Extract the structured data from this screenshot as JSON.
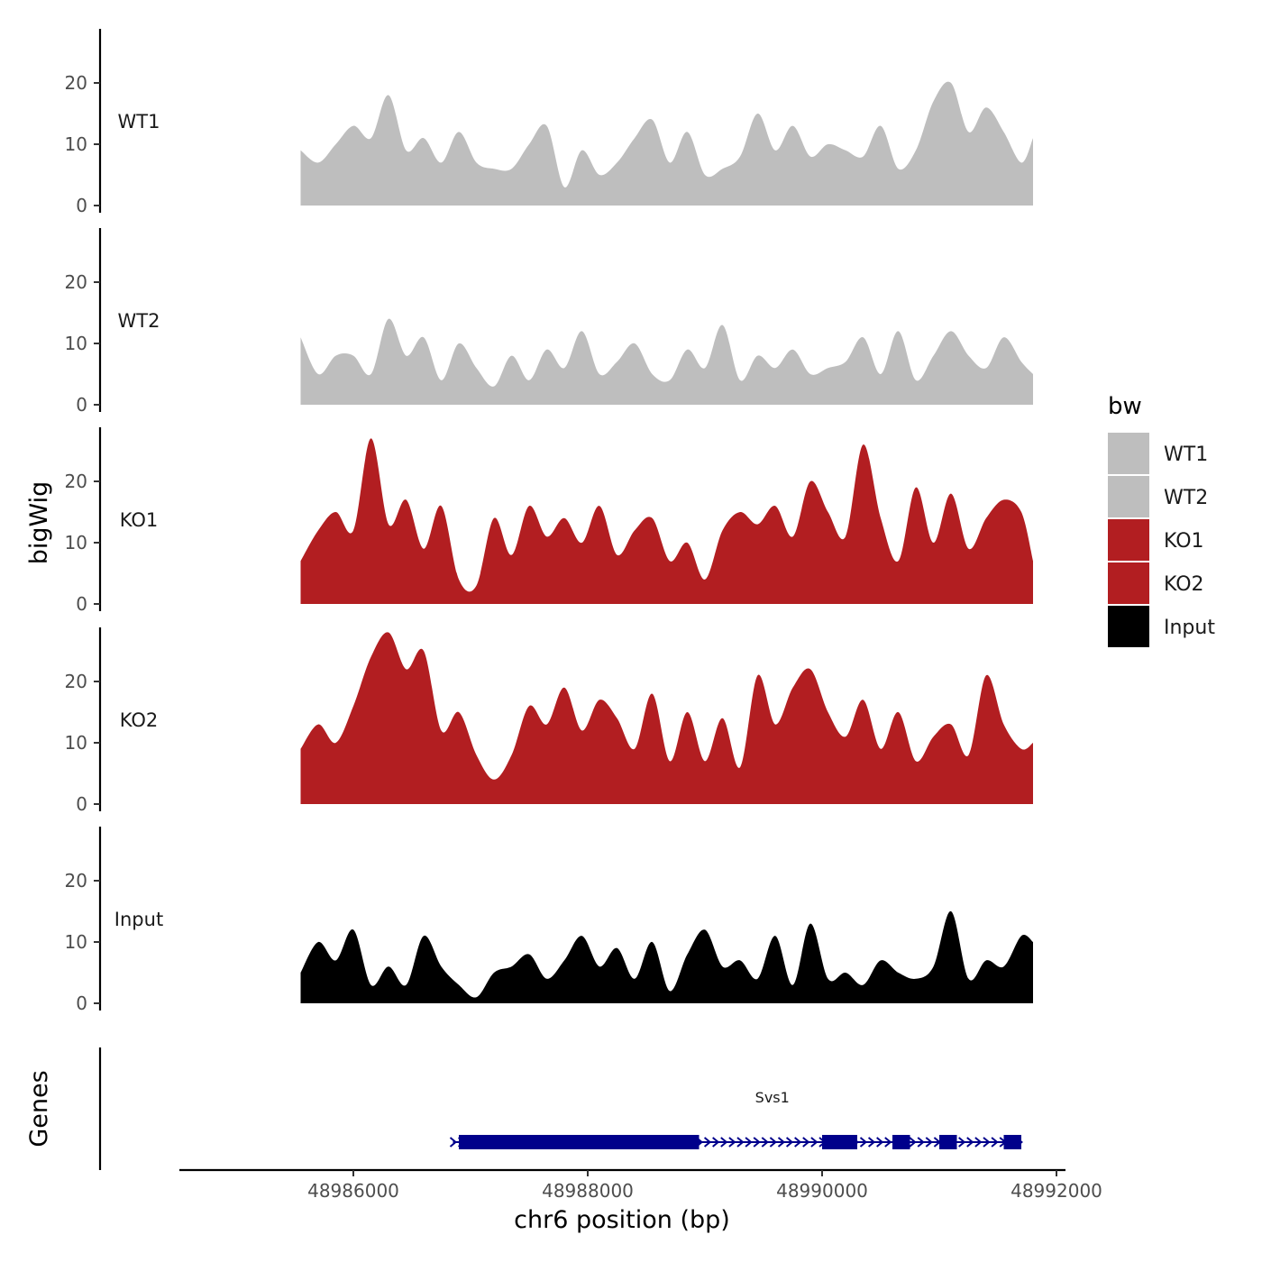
{
  "chart_data": {
    "type": "area",
    "title": "",
    "xlabel": "chr6 position (bp)",
    "ylabel": "bigWig",
    "genes_label": "Genes",
    "xlim": [
      48984500,
      48992000
    ],
    "x_ticks": [
      48986000,
      48988000,
      48990000,
      48992000
    ],
    "x_tick_labels": [
      "48986000",
      "48988000",
      "48990000",
      "48992000"
    ],
    "ylim": [
      0,
      29
    ],
    "y_ticks": [
      0,
      10,
      20
    ],
    "y_tick_labels": [
      "0",
      "10",
      "20"
    ],
    "legend": {
      "title": "bw",
      "placement": "right",
      "entries": [
        {
          "label": "WT1",
          "color": "#bebebe"
        },
        {
          "label": "WT2",
          "color": "#bebebe"
        },
        {
          "label": "KO1",
          "color": "#b21e21"
        },
        {
          "label": "KO2",
          "color": "#b21e21"
        },
        {
          "label": "Input",
          "color": "#000000"
        }
      ]
    },
    "x": [
      48985550,
      48985700,
      48985850,
      48986000,
      48986150,
      48986300,
      48986450,
      48986600,
      48986750,
      48986900,
      48987050,
      48987200,
      48987350,
      48987500,
      48987650,
      48987800,
      48987950,
      48988100,
      48988250,
      48988400,
      48988550,
      48988700,
      48988850,
      48989000,
      48989150,
      48989300,
      48989450,
      48989600,
      48989750,
      48989900,
      48990050,
      48990200,
      48990350,
      48990500,
      48990650,
      48990800,
      48990950,
      48991100,
      48991250,
      48991400,
      48991550,
      48991700,
      48991800
    ],
    "series": [
      {
        "name": "WT1",
        "color": "#bebebe",
        "values": [
          9,
          7,
          10,
          13,
          11,
          18,
          9,
          11,
          7,
          12,
          7,
          6,
          6,
          10,
          13,
          3,
          9,
          5,
          7,
          11,
          14,
          7,
          12,
          5,
          6,
          8,
          15,
          9,
          13,
          8,
          10,
          9,
          8,
          13,
          6,
          9,
          17,
          20,
          12,
          16,
          12,
          7,
          11
        ]
      },
      {
        "name": "WT2",
        "color": "#bebebe",
        "values": [
          11,
          5,
          8,
          8,
          5,
          14,
          8,
          11,
          4,
          10,
          6,
          3,
          8,
          4,
          9,
          6,
          12,
          5,
          7,
          10,
          5,
          4,
          9,
          6,
          13,
          4,
          8,
          6,
          9,
          5,
          6,
          7,
          11,
          5,
          12,
          4,
          8,
          12,
          8,
          6,
          11,
          7,
          5
        ]
      },
      {
        "name": "KO1",
        "color": "#b21e21",
        "values": [
          7,
          12,
          15,
          12,
          27,
          13,
          17,
          9,
          16,
          4,
          3,
          14,
          8,
          16,
          11,
          14,
          10,
          16,
          8,
          12,
          14,
          7,
          10,
          4,
          12,
          15,
          13,
          16,
          11,
          20,
          15,
          11,
          26,
          14,
          7,
          19,
          10,
          18,
          9,
          14,
          17,
          15,
          7
        ]
      },
      {
        "name": "KO2",
        "color": "#b21e21",
        "values": [
          9,
          13,
          10,
          16,
          24,
          28,
          22,
          25,
          12,
          15,
          8,
          4,
          8,
          16,
          13,
          19,
          12,
          17,
          14,
          9,
          18,
          7,
          15,
          7,
          14,
          6,
          21,
          13,
          19,
          22,
          15,
          11,
          17,
          9,
          15,
          7,
          11,
          13,
          8,
          21,
          13,
          9,
          10
        ]
      },
      {
        "name": "Input",
        "color": "#000000",
        "values": [
          5,
          10,
          7,
          12,
          3,
          6,
          3,
          11,
          6,
          3,
          1,
          5,
          6,
          8,
          4,
          7,
          11,
          6,
          9,
          4,
          10,
          2,
          8,
          12,
          6,
          7,
          4,
          11,
          3,
          13,
          4,
          5,
          3,
          7,
          5,
          4,
          6,
          15,
          4,
          7,
          6,
          11,
          10
        ]
      }
    ],
    "gene": {
      "name": "Svs1",
      "color": "#00008b",
      "strand": "+",
      "start": 48986850,
      "end": 48991700,
      "exons": [
        [
          48986900,
          48988950
        ],
        [
          48990000,
          48990300
        ],
        [
          48990600,
          48990750
        ],
        [
          48991000,
          48991150
        ],
        [
          48991550,
          48991700
        ]
      ]
    }
  }
}
